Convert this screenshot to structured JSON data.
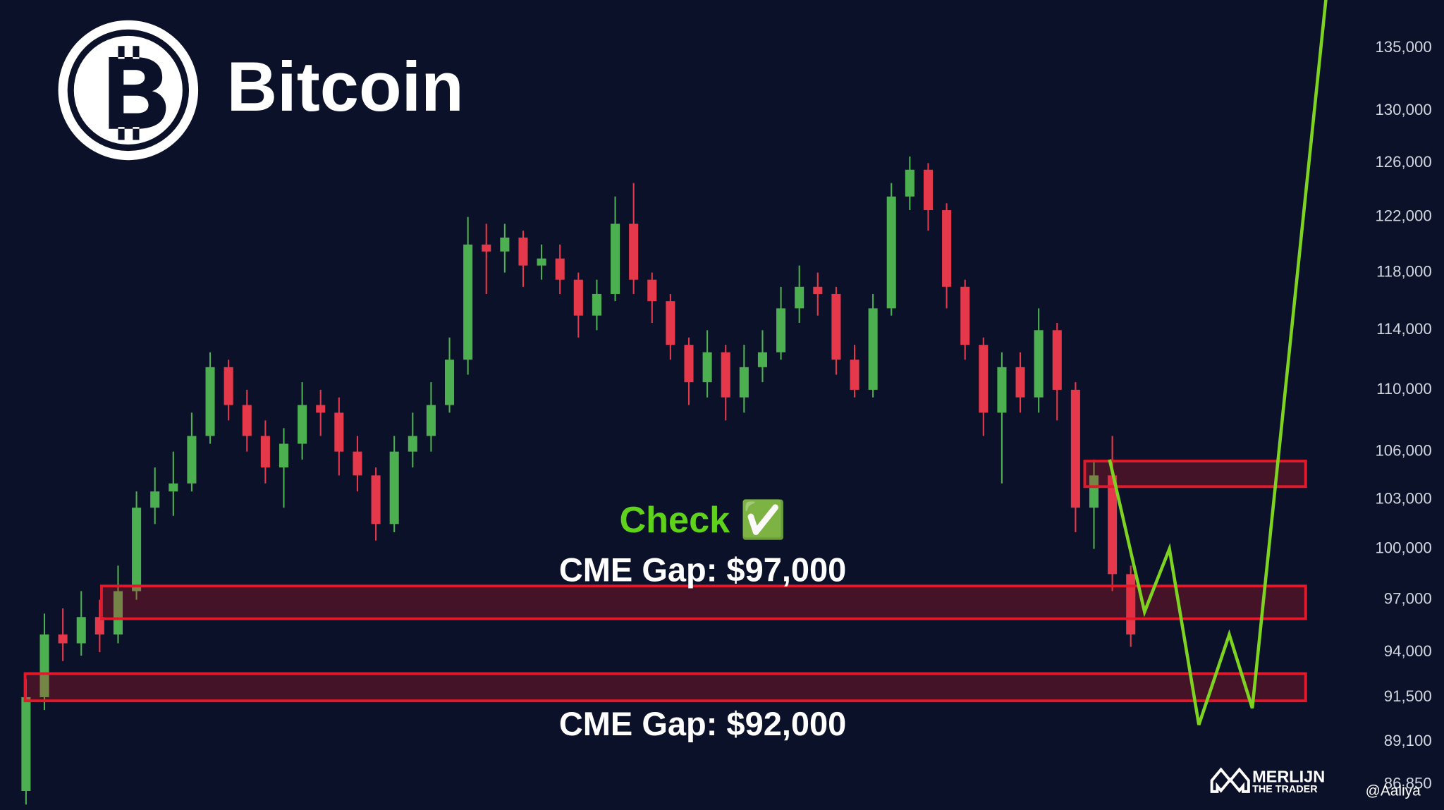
{
  "chart_data": {
    "type": "candlestick",
    "title": "Bitcoin",
    "log_scale": true,
    "grid": false,
    "ylim": [
      85520,
      138930
    ],
    "yticks": [
      {
        "value": 135000,
        "label": "135,000"
      },
      {
        "value": 130000,
        "label": "130,000"
      },
      {
        "value": 126000,
        "label": "126,000"
      },
      {
        "value": 122000,
        "label": "122,000"
      },
      {
        "value": 118000,
        "label": "118,000"
      },
      {
        "value": 114000,
        "label": "114,000"
      },
      {
        "value": 110000,
        "label": "110,000"
      },
      {
        "value": 106000,
        "label": "106,000"
      },
      {
        "value": 103000,
        "label": "103,000"
      },
      {
        "value": 100000,
        "label": "100,000"
      },
      {
        "value": 97000,
        "label": "97,000"
      },
      {
        "value": 94000,
        "label": "94,000"
      },
      {
        "value": 91500,
        "label": "91,500"
      },
      {
        "value": 89100,
        "label": "89,100"
      },
      {
        "value": 86850,
        "label": "86,850"
      }
    ],
    "up_color": "#4caf50",
    "down_color": "#e5384a",
    "candles": {
      "open": [
        86500,
        91500,
        95000,
        94500,
        96000,
        95000,
        97500,
        102500,
        103500,
        104000,
        107000,
        111500,
        109000,
        107000,
        105000,
        106500,
        109000,
        108500,
        106000,
        104500,
        101500,
        106000,
        107000,
        109000,
        112000,
        120000,
        119500,
        120500,
        118500,
        119000,
        117500,
        115000,
        116500,
        121500,
        117500,
        116000,
        113000,
        110500,
        112500,
        109500,
        111500,
        112500,
        115500,
        117000,
        116500,
        112000,
        110000,
        115500,
        123500,
        125500,
        122500,
        117000,
        113000,
        108500,
        111500,
        109500,
        114000,
        110000,
        102500,
        104500,
        98500
      ],
      "high": [
        92500,
        96200,
        96500,
        97500,
        97000,
        99000,
        103500,
        105000,
        106000,
        108500,
        112500,
        112000,
        110000,
        108000,
        107500,
        110500,
        110000,
        109500,
        107000,
        105000,
        107000,
        108500,
        110500,
        113500,
        122000,
        121500,
        121500,
        121000,
        120000,
        120000,
        118000,
        117500,
        123500,
        124500,
        118000,
        116500,
        113500,
        114000,
        113000,
        113000,
        114000,
        117000,
        118500,
        118000,
        117000,
        113000,
        116500,
        124500,
        126500,
        126000,
        123000,
        117500,
        113500,
        112500,
        112500,
        115500,
        114500,
        110500,
        105500,
        107000,
        99000
      ],
      "low": [
        85800,
        90800,
        93500,
        93800,
        94000,
        94500,
        97000,
        101500,
        102000,
        103500,
        106500,
        108000,
        106000,
        104000,
        102500,
        105500,
        107000,
        104500,
        103500,
        100500,
        101000,
        105000,
        106000,
        108500,
        111000,
        116500,
        118000,
        117000,
        117500,
        116500,
        113500,
        114000,
        116000,
        116500,
        114500,
        112000,
        109000,
        109500,
        108000,
        108500,
        110500,
        112000,
        114500,
        115000,
        111000,
        109500,
        109500,
        115000,
        122500,
        121000,
        115500,
        112000,
        107000,
        104000,
        108500,
        108500,
        108000,
        101000,
        100000,
        97500,
        94300
      ],
      "close": [
        91500,
        95000,
        94500,
        96000,
        95000,
        97500,
        102500,
        103500,
        104000,
        107000,
        111500,
        109000,
        107000,
        105000,
        106500,
        109000,
        108500,
        106000,
        104500,
        101500,
        106000,
        107000,
        109000,
        112000,
        120000,
        119500,
        120500,
        118500,
        119000,
        117500,
        115000,
        116500,
        121500,
        117500,
        116000,
        113000,
        110500,
        112500,
        109500,
        111500,
        112500,
        115500,
        117000,
        116500,
        112000,
        110000,
        115500,
        123500,
        125500,
        122500,
        117000,
        113000,
        108500,
        111500,
        109500,
        114000,
        110000,
        102500,
        104500,
        98500,
        95000
      ]
    },
    "zones": [
      {
        "range": [
          103800,
          105400
        ],
        "start": 57.5
      },
      {
        "range": [
          95900,
          97800
        ],
        "start": 4.1
      },
      {
        "range": [
          91300,
          92800
        ],
        "start": -0.05
      }
    ],
    "zone_end": 69.5,
    "zone_color": "#e01a2a",
    "projection": {
      "color": "#7ed321",
      "x": [
        58.85,
        60.75,
        62.1,
        63.7,
        65.35,
        66.6,
        70.6
      ],
      "values": [
        105500,
        96300,
        100000,
        90000,
        95000,
        90900,
        139000
      ]
    },
    "annotations": [
      {
        "text": "Check ✅",
        "value": 101600
      },
      {
        "text": "CME Gap: $97,000",
        "value": 98600
      },
      {
        "text": "CME Gap: $92,000",
        "value": 89900
      }
    ],
    "watermark": {
      "brand": "MERLIJN",
      "tagline": "THE TRADER",
      "handle": "@Aaliya"
    }
  }
}
